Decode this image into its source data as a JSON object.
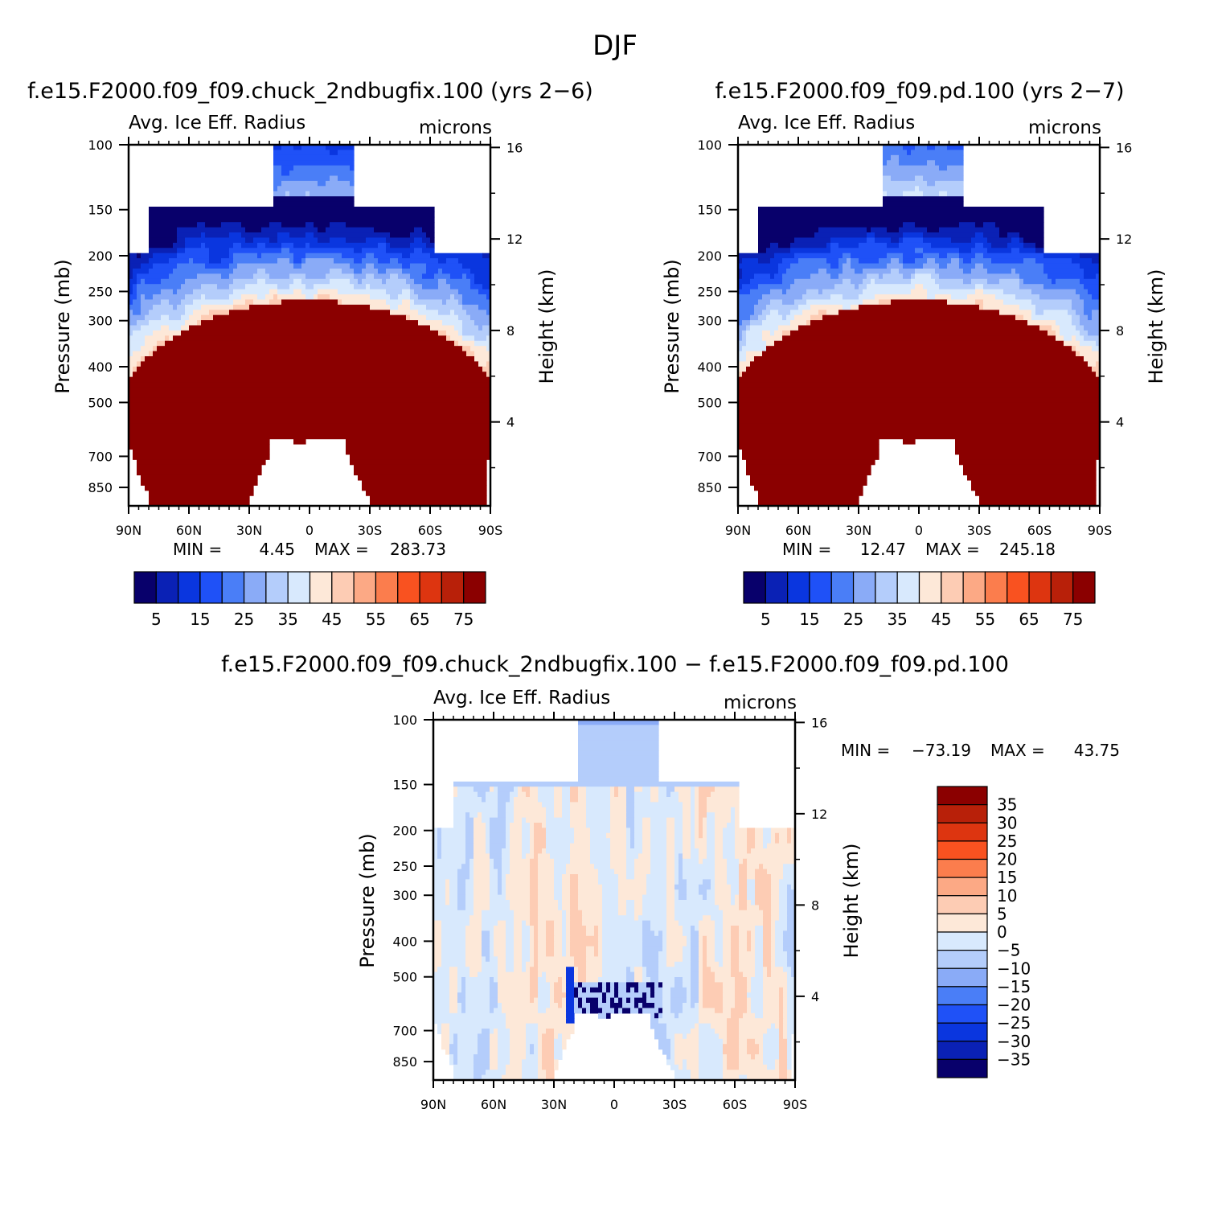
{
  "figure": {
    "season": "DJF",
    "colors": {
      "absolute_scale": [
        "#08006b",
        "#0a21b5",
        "#0a36df",
        "#1f51f7",
        "#4a7ef7",
        "#8aabf7",
        "#b4cdfb",
        "#d8e9fd",
        "#fde8d8",
        "#fdccb4",
        "#fca985",
        "#fb7d4d",
        "#f95220",
        "#dd3510",
        "#b82009",
        "#8b0000"
      ],
      "difference_scale": [
        "#08006b",
        "#0a21b5",
        "#0a36df",
        "#1f51f7",
        "#4a7ef7",
        "#8aabf7",
        "#b4cdfb",
        "#d8e9fd",
        "#fde8d8",
        "#fdccb4",
        "#fca985",
        "#fb7d4d",
        "#f95220",
        "#dd3510",
        "#b82009",
        "#8b0000"
      ]
    }
  },
  "chart_data": [
    {
      "type": "heatmap",
      "title": "f.e15.F2000.f09_f09.chuck_2ndbugfix.100 (yrs 2-6)",
      "subtitle_left": "Avg. Ice Eff. Radius",
      "subtitle_right": "microns",
      "xlabel": "",
      "ylabel": "Pressure (mb)",
      "ylabel_right": "Height (km)",
      "x_ticks": [
        "90N",
        "60N",
        "30N",
        "0",
        "30S",
        "60S",
        "90S"
      ],
      "x_range": [
        90,
        -90
      ],
      "y_ticks": [
        "100",
        "150",
        "200",
        "250",
        "300",
        "400",
        "500",
        "700",
        "850"
      ],
      "y_range_mb": [
        100,
        1000
      ],
      "y_right_ticks": [
        "16",
        "12",
        "8",
        "4"
      ],
      "min_label": "MIN =",
      "min_value": "4.45",
      "max_label": "MAX =",
      "max_value": "283.73",
      "colorbar_labels": [
        "5",
        "15",
        "25",
        "35",
        "45",
        "55",
        "65",
        "75"
      ],
      "levels": [
        5,
        10,
        15,
        20,
        25,
        30,
        35,
        40,
        45,
        50,
        55,
        60,
        65,
        70,
        75
      ]
    },
    {
      "type": "heatmap",
      "title": "f.e15.F2000.f09_f09.pd.100 (yrs 2-7)",
      "subtitle_left": "Avg. Ice Eff. Radius",
      "subtitle_right": "microns",
      "xlabel": "",
      "ylabel": "Pressure (mb)",
      "ylabel_right": "Height (km)",
      "x_ticks": [
        "90N",
        "60N",
        "30N",
        "0",
        "30S",
        "60S",
        "90S"
      ],
      "x_range": [
        90,
        -90
      ],
      "y_ticks": [
        "100",
        "150",
        "200",
        "250",
        "300",
        "400",
        "500",
        "700",
        "850"
      ],
      "y_range_mb": [
        100,
        1000
      ],
      "y_right_ticks": [
        "16",
        "12",
        "8",
        "4"
      ],
      "min_label": "MIN =",
      "min_value": "12.47",
      "max_label": "MAX =",
      "max_value": "245.18",
      "colorbar_labels": [
        "5",
        "15",
        "25",
        "35",
        "45",
        "55",
        "65",
        "75"
      ],
      "levels": [
        5,
        10,
        15,
        20,
        25,
        30,
        35,
        40,
        45,
        50,
        55,
        60,
        65,
        70,
        75
      ]
    },
    {
      "type": "heatmap",
      "title": "f.e15.F2000.f09_f09.chuck_2ndbugfix.100 - f.e15.F2000.f09_f09.pd.100",
      "subtitle_left": "Avg. Ice Eff. Radius",
      "subtitle_right": "microns",
      "xlabel": "",
      "ylabel": "Pressure (mb)",
      "ylabel_right": "Height (km)",
      "x_ticks": [
        "90N",
        "60N",
        "30N",
        "0",
        "30S",
        "60S",
        "90S"
      ],
      "x_range": [
        90,
        -90
      ],
      "y_ticks": [
        "100",
        "150",
        "200",
        "250",
        "300",
        "400",
        "500",
        "700",
        "850"
      ],
      "y_range_mb": [
        100,
        1000
      ],
      "y_right_ticks": [
        "16",
        "12",
        "8",
        "4"
      ],
      "min_label": "MIN =",
      "min_value": "-73.19",
      "max_label": "MAX =",
      "max_value": "43.75",
      "colorbar_labels": [
        "35",
        "30",
        "25",
        "20",
        "15",
        "10",
        "5",
        "0",
        "-5",
        "-10",
        "-15",
        "-20",
        "-25",
        "-30",
        "-35"
      ],
      "levels": [
        -35,
        -30,
        -25,
        -20,
        -15,
        -10,
        -5,
        0,
        5,
        10,
        15,
        20,
        25,
        30,
        35
      ]
    }
  ]
}
